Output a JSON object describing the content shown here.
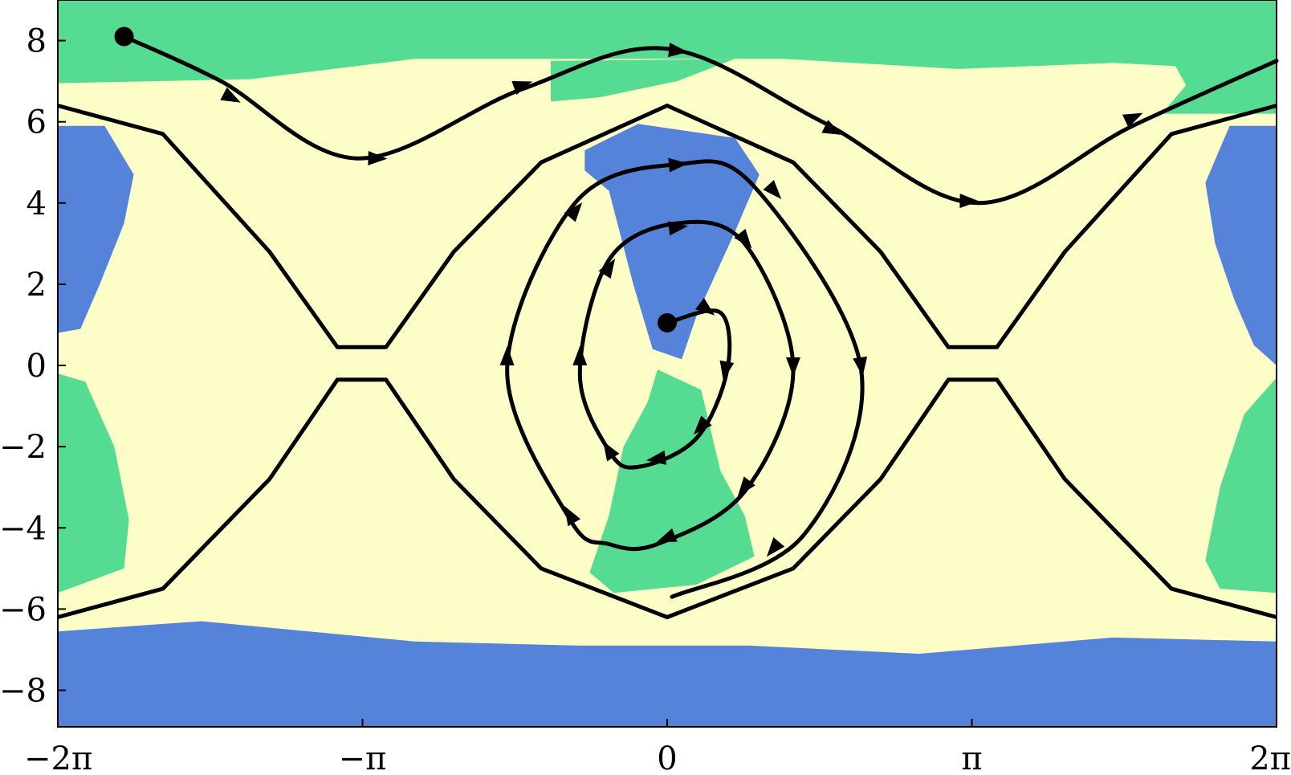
{
  "chart_data": {
    "type": "phase-portrait",
    "xlim": [
      -6.2832,
      6.2832
    ],
    "ylim": [
      -8.9,
      9.0
    ],
    "colors": {
      "yellow": "#fdfdc7",
      "green": "#55db92",
      "blue": "#5683da",
      "line": "#000000"
    },
    "x_ticks": [
      {
        "value": -6.2832,
        "label": "−2π"
      },
      {
        "value": -3.1416,
        "label": "−π"
      },
      {
        "value": 0,
        "label": "0"
      },
      {
        "value": 3.1416,
        "label": "π"
      },
      {
        "value": 6.2832,
        "label": "2π"
      }
    ],
    "y_ticks": [
      {
        "value": 8,
        "label": "8"
      },
      {
        "value": 6,
        "label": "6"
      },
      {
        "value": 4,
        "label": "4"
      },
      {
        "value": 2,
        "label": "2"
      },
      {
        "value": 0,
        "label": "0"
      },
      {
        "value": -2,
        "label": "−2"
      },
      {
        "value": -4,
        "label": "−4"
      },
      {
        "value": -6,
        "label": "−6"
      },
      {
        "value": -8,
        "label": "−8"
      }
    ],
    "regions": [
      {
        "color": "green",
        "points": [
          [
            -6.2832,
            9.0
          ],
          [
            6.2832,
            9.0
          ],
          [
            6.2832,
            7.7
          ],
          [
            5.8,
            7.3
          ],
          [
            4.6,
            7.45
          ],
          [
            3.0,
            7.3
          ],
          [
            1.2,
            7.55
          ],
          [
            -0.9,
            7.55
          ],
          [
            -2.6,
            7.55
          ],
          [
            -4.3,
            7.05
          ],
          [
            -6.2832,
            6.95
          ]
        ]
      },
      {
        "color": "green",
        "points": [
          [
            -1.2,
            7.5
          ],
          [
            0.7,
            7.55
          ],
          [
            0.1,
            7.0
          ],
          [
            -0.7,
            6.6
          ],
          [
            -1.2,
            6.5
          ]
        ]
      },
      {
        "color": "green",
        "points": [
          [
            5.2,
            7.55
          ],
          [
            6.2832,
            7.7
          ],
          [
            6.2832,
            6.2
          ],
          [
            5.1,
            6.2
          ],
          [
            5.35,
            6.9
          ]
        ]
      },
      {
        "color": "blue",
        "points": [
          [
            -6.2832,
            5.9
          ],
          [
            -5.8,
            5.9
          ],
          [
            -5.5,
            4.7
          ],
          [
            -5.6,
            3.5
          ],
          [
            -5.85,
            2.0
          ],
          [
            -6.05,
            0.9
          ],
          [
            -6.2832,
            0.8
          ]
        ]
      },
      {
        "color": "blue",
        "points": [
          [
            6.2832,
            5.9
          ],
          [
            5.8,
            5.9
          ],
          [
            5.55,
            4.5
          ],
          [
            5.65,
            3.0
          ],
          [
            5.85,
            1.6
          ],
          [
            6.05,
            0.5
          ],
          [
            6.2832,
            0.0
          ]
        ]
      },
      {
        "color": "green",
        "points": [
          [
            -6.2832,
            -0.2
          ],
          [
            -6.0,
            -0.4
          ],
          [
            -5.7,
            -2.0
          ],
          [
            -5.55,
            -3.8
          ],
          [
            -5.6,
            -5.0
          ],
          [
            -6.2832,
            -5.6
          ]
        ]
      },
      {
        "color": "green",
        "points": [
          [
            6.2832,
            -0.3
          ],
          [
            5.95,
            -1.2
          ],
          [
            5.7,
            -3.0
          ],
          [
            5.55,
            -4.8
          ],
          [
            5.7,
            -5.5
          ],
          [
            6.2832,
            -5.6
          ]
        ]
      },
      {
        "color": "blue",
        "points": [
          [
            -0.85,
            5.3
          ],
          [
            -0.3,
            5.95
          ],
          [
            0.7,
            5.6
          ],
          [
            0.95,
            4.7
          ],
          [
            0.7,
            3.3
          ],
          [
            0.3,
            1.2
          ],
          [
            0.15,
            0.15
          ],
          [
            -0.15,
            0.4
          ],
          [
            -0.35,
            2.0
          ],
          [
            -0.6,
            4.3
          ],
          [
            -0.85,
            4.8
          ]
        ]
      },
      {
        "color": "green",
        "points": [
          [
            -0.1,
            -0.1
          ],
          [
            0.35,
            -0.6
          ],
          [
            0.55,
            -2.6
          ],
          [
            0.8,
            -3.7
          ],
          [
            0.9,
            -4.7
          ],
          [
            0.3,
            -5.4
          ],
          [
            -0.55,
            -5.6
          ],
          [
            -0.8,
            -5.1
          ],
          [
            -0.6,
            -3.7
          ],
          [
            -0.45,
            -2.0
          ],
          [
            -0.2,
            -0.9
          ]
        ]
      },
      {
        "color": "blue",
        "points": [
          [
            -6.2832,
            -6.55
          ],
          [
            -4.8,
            -6.3
          ],
          [
            -2.6,
            -6.8
          ],
          [
            -0.9,
            -6.9
          ],
          [
            0.85,
            -6.9
          ],
          [
            2.6,
            -7.1
          ],
          [
            4.6,
            -6.7
          ],
          [
            6.2832,
            -6.8
          ],
          [
            6.2832,
            -8.9
          ],
          [
            -6.2832,
            -8.9
          ]
        ]
      }
    ],
    "separatrices": [
      {
        "points": [
          [
            -6.2832,
            6.4
          ],
          [
            -5.2,
            5.7
          ],
          [
            -4.1,
            2.8
          ],
          [
            -3.4,
            0.45
          ],
          [
            -2.9,
            0.45
          ],
          [
            -2.2,
            2.8
          ],
          [
            -1.3,
            5.0
          ],
          [
            0,
            6.4
          ],
          [
            1.3,
            5.0
          ],
          [
            2.2,
            2.8
          ],
          [
            2.9,
            0.45
          ],
          [
            3.4,
            0.45
          ],
          [
            4.1,
            2.8
          ],
          [
            5.2,
            5.7
          ],
          [
            6.2832,
            6.4
          ]
        ]
      },
      {
        "points": [
          [
            -6.2832,
            -6.2
          ],
          [
            -5.2,
            -5.5
          ],
          [
            -4.1,
            -2.8
          ],
          [
            -3.4,
            -0.35
          ],
          [
            -2.9,
            -0.35
          ],
          [
            -2.2,
            -2.8
          ],
          [
            -1.3,
            -5.0
          ],
          [
            0,
            -6.2
          ],
          [
            1.3,
            -5.0
          ],
          [
            2.2,
            -2.8
          ],
          [
            2.9,
            -0.35
          ],
          [
            3.4,
            -0.35
          ],
          [
            4.1,
            -2.8
          ],
          [
            5.2,
            -5.5
          ],
          [
            6.2832,
            -6.2
          ]
        ]
      }
    ],
    "trajectories": [
      {
        "name": "top",
        "start": [
          -5.6,
          8.1
        ],
        "points": [
          [
            -5.6,
            8.1
          ],
          [
            -4.6,
            7.0
          ],
          [
            -3.2,
            5.1
          ],
          [
            -1.5,
            6.8
          ],
          [
            0,
            7.8
          ],
          [
            1.6,
            6.0
          ],
          [
            3.2,
            4.0
          ],
          [
            4.8,
            5.9
          ],
          [
            6.2832,
            7.5
          ]
        ],
        "arrows": [
          [
            -4.5,
            6.6
          ],
          [
            -3.0,
            5.1
          ],
          [
            -1.5,
            6.9
          ],
          [
            0.1,
            7.75
          ],
          [
            1.7,
            5.8
          ],
          [
            3.1,
            4.05
          ],
          [
            4.8,
            6.1
          ]
        ]
      },
      {
        "name": "spiral",
        "start": [
          0,
          1.05
        ],
        "points": [
          [
            0,
            1.05
          ],
          [
            0.55,
            1.3
          ],
          [
            0.62,
            -0.1
          ],
          [
            0.3,
            -1.8
          ],
          [
            -0.3,
            -2.5
          ],
          [
            -0.6,
            -2.1
          ],
          [
            -0.9,
            -0.2
          ],
          [
            -0.6,
            2.6
          ],
          [
            0.1,
            3.5
          ],
          [
            0.8,
            3.0
          ],
          [
            1.3,
            -0.1
          ],
          [
            0.8,
            -3.1
          ],
          [
            -0.1,
            -4.4
          ],
          [
            -0.6,
            -4.4
          ],
          [
            -1.0,
            -3.8
          ],
          [
            -1.65,
            -0.1
          ],
          [
            -0.95,
            4.0
          ],
          [
            0.1,
            4.95
          ],
          [
            0.9,
            4.4
          ],
          [
            2.0,
            -0.1
          ],
          [
            1.4,
            -4.2
          ],
          [
            0.05,
            -5.7
          ]
        ],
        "arrows": [
          [
            0.4,
            1.4
          ],
          [
            0.6,
            -0.1
          ],
          [
            0.35,
            -1.5
          ],
          [
            -0.1,
            -2.3
          ],
          [
            -0.6,
            -2.1
          ],
          [
            -0.9,
            0.2
          ],
          [
            -0.6,
            2.4
          ],
          [
            0.1,
            3.4
          ],
          [
            0.8,
            3.1
          ],
          [
            1.3,
            0.0
          ],
          [
            0.8,
            -3.0
          ],
          [
            0.0,
            -4.25
          ],
          [
            -1.0,
            -3.7
          ],
          [
            -1.65,
            0.2
          ],
          [
            -0.95,
            3.8
          ],
          [
            0.1,
            4.95
          ],
          [
            1.1,
            4.3
          ],
          [
            2.0,
            0.0
          ],
          [
            1.1,
            -4.5
          ]
        ]
      }
    ]
  }
}
